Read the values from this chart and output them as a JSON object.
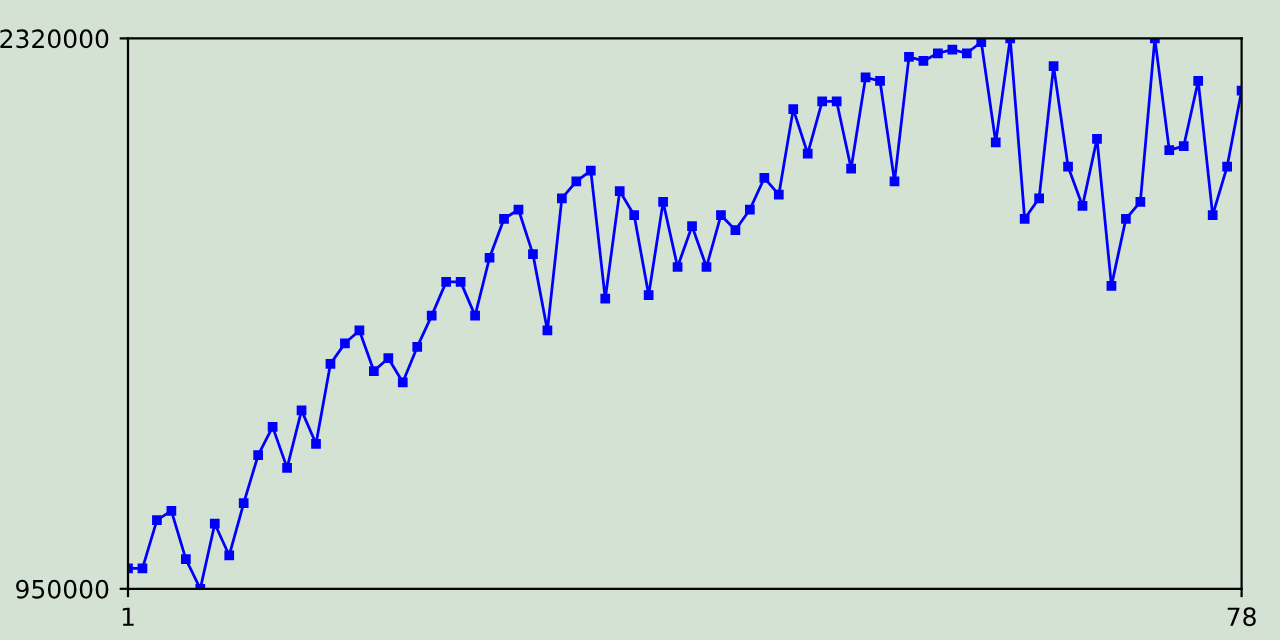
{
  "chart_data": {
    "type": "line",
    "x": [
      1,
      2,
      3,
      4,
      5,
      6,
      7,
      8,
      9,
      10,
      11,
      12,
      13,
      14,
      15,
      16,
      17,
      18,
      19,
      20,
      21,
      22,
      23,
      24,
      25,
      26,
      27,
      28,
      29,
      30,
      31,
      32,
      33,
      34,
      35,
      36,
      37,
      38,
      39,
      40,
      41,
      42,
      43,
      44,
      45,
      46,
      47,
      48,
      49,
      50,
      51,
      52,
      53,
      54,
      55,
      56,
      57,
      58,
      59,
      60,
      61,
      62,
      63,
      64,
      65,
      66,
      67,
      68,
      69,
      70,
      71,
      72,
      73,
      74,
      75,
      76,
      77,
      78
    ],
    "series": [
      {
        "color": "#0000ff",
        "values": [
          1001000,
          1001000,
          1121000,
          1144000,
          1024000,
          950000,
          1112000,
          1033000,
          1163000,
          1283000,
          1353000,
          1251000,
          1394000,
          1311000,
          1510000,
          1561000,
          1593000,
          1492000,
          1524000,
          1464000,
          1552000,
          1630000,
          1714000,
          1714000,
          1630000,
          1774000,
          1871000,
          1894000,
          1783000,
          1593000,
          1922000,
          1964000,
          1991000,
          1672000,
          1940000,
          1880000,
          1681000,
          1913000,
          1751000,
          1853000,
          1751000,
          1880000,
          1843000,
          1894000,
          1973000,
          1931000,
          2144000,
          2033000,
          2163000,
          2163000,
          1996000,
          2223000,
          2214000,
          1964000,
          2274000,
          2264000,
          2283000,
          2292000,
          2283000,
          2311000,
          2061000,
          2320000,
          1871000,
          1922000,
          2251000,
          2001000,
          1903000,
          2070000,
          1704000,
          1871000,
          1913000,
          2320000,
          2042000,
          2052000,
          2214000,
          1880000,
          2001000,
          2190000
        ]
      }
    ],
    "xlim": [
      1,
      78
    ],
    "xticks": [
      1,
      78
    ],
    "ylim": [
      950000,
      2320000
    ],
    "yticks": [
      950000,
      2320000
    ],
    "marker": "square",
    "line_style": "solid",
    "grid": false,
    "legend": false
  }
}
